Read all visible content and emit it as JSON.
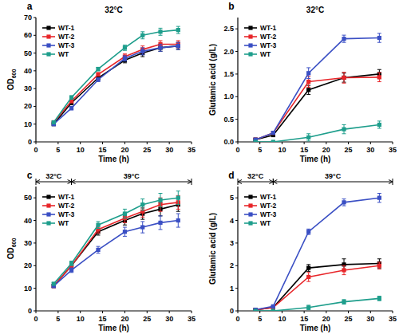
{
  "chart_data": [
    {
      "type": "line",
      "panel": "a",
      "annotations": [
        {
          "text": "32°C"
        }
      ],
      "x_label": "Time (h)",
      "y_label": "OD600",
      "x": [
        4,
        8,
        14,
        20,
        24,
        28,
        32
      ],
      "xlim": [
        0,
        35
      ],
      "xticks": [
        0,
        5,
        10,
        15,
        20,
        25,
        30,
        35
      ],
      "ylim": [
        0,
        70
      ],
      "yticks": [
        0,
        10,
        20,
        30,
        40,
        50,
        60,
        70
      ],
      "legend": "upper-left",
      "marker": "square",
      "grid": false,
      "series": [
        {
          "name": "WT-1",
          "color": "#000000",
          "values": [
            10,
            22,
            36,
            46,
            50,
            53,
            54
          ],
          "errors": [
            0.5,
            1,
            1,
            1.5,
            2,
            2,
            2
          ]
        },
        {
          "name": "WT-2",
          "color": "#e8262a",
          "values": [
            11,
            23,
            38,
            48,
            52,
            55,
            55
          ],
          "errors": [
            0.5,
            1,
            1,
            1.5,
            2,
            2,
            2
          ]
        },
        {
          "name": "WT-3",
          "color": "#3a4fc4",
          "values": [
            10,
            19,
            35,
            47,
            51,
            53,
            54
          ],
          "errors": [
            0.5,
            1,
            1,
            1.5,
            2,
            2,
            2
          ]
        },
        {
          "name": "WT",
          "color": "#1e9e8c",
          "values": [
            11,
            25,
            41,
            53,
            60,
            62,
            63
          ],
          "errors": [
            0.5,
            1,
            1,
            1.5,
            2,
            2,
            2
          ]
        }
      ]
    },
    {
      "type": "line",
      "panel": "b",
      "annotations": [
        {
          "text": "32°C"
        }
      ],
      "x_label": "Time (h)",
      "y_label": "Glutamic acid (g/L)",
      "x": [
        4,
        8,
        16,
        24,
        32
      ],
      "xlim": [
        0,
        35
      ],
      "xticks": [
        0,
        5,
        10,
        15,
        20,
        25,
        30,
        35
      ],
      "ylim": [
        0,
        2.75
      ],
      "yticks": [
        {
          "value": 0,
          "label": "0.0"
        },
        {
          "value": 0.5,
          "label": "0.5"
        },
        {
          "value": 1,
          "label": "1.0"
        },
        {
          "value": 1.5,
          "label": "1.5"
        },
        {
          "value": 2,
          "label": "2.0"
        },
        {
          "value": 2.5,
          "label": "2.5"
        }
      ],
      "legend": "upper-left",
      "marker": "square",
      "grid": false,
      "series": [
        {
          "name": "WT-1",
          "color": "#000000",
          "values": [
            0.05,
            0.15,
            1.15,
            1.42,
            1.5
          ],
          "errors": [
            0.02,
            0.03,
            0.1,
            0.1,
            0.1
          ]
        },
        {
          "name": "WT-2",
          "color": "#e8262a",
          "values": [
            0.05,
            0.2,
            1.33,
            1.42,
            1.43
          ],
          "errors": [
            0.02,
            0.03,
            0.12,
            0.12,
            0.1
          ]
        },
        {
          "name": "WT-3",
          "color": "#3a4fc4",
          "values": [
            0.05,
            0.2,
            1.52,
            2.28,
            2.3
          ],
          "errors": [
            0.02,
            0.03,
            0.12,
            0.08,
            0.1
          ]
        },
        {
          "name": "WT",
          "color": "#1e9e8c",
          "values": [
            0,
            0,
            0.1,
            0.28,
            0.38
          ],
          "errors": [
            0.02,
            0.02,
            0.08,
            0.1,
            0.08
          ]
        }
      ]
    },
    {
      "type": "line",
      "panel": "c",
      "annotations": [
        {
          "text": "32°C",
          "from": 0,
          "to": 8
        },
        {
          "text": "39°C",
          "from": 8,
          "to": 35
        }
      ],
      "x_label": "Time (h)",
      "y_label": "OD600",
      "x": [
        4,
        8,
        14,
        20,
        24,
        28,
        32
      ],
      "xlim": [
        0,
        35
      ],
      "xticks": [
        0,
        5,
        10,
        15,
        20,
        25,
        30,
        35
      ],
      "ylim": [
        0,
        55
      ],
      "yticks": [
        0,
        10,
        20,
        30,
        40,
        50
      ],
      "legend": "upper-left",
      "marker": "square",
      "grid": false,
      "series": [
        {
          "name": "WT-1",
          "color": "#000000",
          "values": [
            11,
            20,
            35,
            40,
            43,
            45,
            47
          ],
          "errors": [
            0.5,
            1,
            1.5,
            2,
            2.5,
            3,
            3
          ]
        },
        {
          "name": "WT-2",
          "color": "#e8262a",
          "values": [
            11,
            20,
            36,
            41,
            44,
            47,
            48
          ],
          "errors": [
            0.5,
            1,
            1.5,
            2,
            2.5,
            3,
            3
          ]
        },
        {
          "name": "WT-3",
          "color": "#3a4fc4",
          "values": [
            11,
            18,
            27,
            35,
            37,
            39,
            40
          ],
          "errors": [
            0.5,
            1,
            1.5,
            2,
            2.5,
            3,
            3
          ]
        },
        {
          "name": "WT",
          "color": "#1e9e8c",
          "values": [
            12,
            21,
            38,
            43,
            47,
            49,
            50
          ],
          "errors": [
            0.5,
            1,
            1.5,
            2,
            2.5,
            3,
            3
          ]
        }
      ]
    },
    {
      "type": "line",
      "panel": "d",
      "annotations": [
        {
          "text": "32°C",
          "from": 0,
          "to": 8
        },
        {
          "text": "39°C",
          "from": 8,
          "to": 35
        }
      ],
      "x_label": "Time (h)",
      "y_label": "Glutamic acid (g/L)",
      "x": [
        4,
        8,
        16,
        24,
        32
      ],
      "xlim": [
        0,
        35
      ],
      "xticks": [
        0,
        5,
        10,
        15,
        20,
        25,
        30,
        35
      ],
      "ylim": [
        0,
        5.5
      ],
      "yticks": [
        0,
        1,
        2,
        3,
        4,
        5
      ],
      "legend": "upper-left",
      "marker": "square",
      "grid": false,
      "series": [
        {
          "name": "WT-1",
          "color": "#000000",
          "values": [
            0.05,
            0.15,
            1.9,
            2.05,
            2.1
          ],
          "errors": [
            0.02,
            0.05,
            0.15,
            0.25,
            0.2
          ]
        },
        {
          "name": "WT-2",
          "color": "#e8262a",
          "values": [
            0.05,
            0.15,
            1.5,
            1.8,
            2.0
          ],
          "errors": [
            0.02,
            0.05,
            0.2,
            0.2,
            0.15
          ]
        },
        {
          "name": "WT-3",
          "color": "#3a4fc4",
          "values": [
            0.05,
            0.2,
            3.5,
            4.8,
            5.0
          ],
          "errors": [
            0.02,
            0.05,
            0.12,
            0.15,
            0.2
          ]
        },
        {
          "name": "WT",
          "color": "#1e9e8c",
          "values": [
            0,
            0,
            0.15,
            0.4,
            0.55
          ],
          "errors": [
            0.02,
            0.02,
            0.1,
            0.1,
            0.1
          ]
        }
      ]
    }
  ]
}
